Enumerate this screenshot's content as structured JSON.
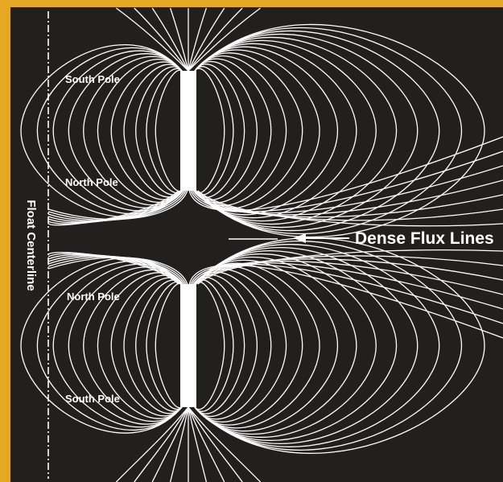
{
  "colors": {
    "background": "#221f1f",
    "frame": "#e6a823",
    "lines": "#ffffff"
  },
  "labels": {
    "upper_magnet": {
      "top_pole": "South Pole",
      "bottom_pole": "North Pole"
    },
    "lower_magnet": {
      "top_pole": "North Pole",
      "bottom_pole": "South Pole"
    },
    "callout": "Dense Flux Lines",
    "centerline": "Float Centerline"
  },
  "icons": [
    "arrow-left-icon"
  ]
}
